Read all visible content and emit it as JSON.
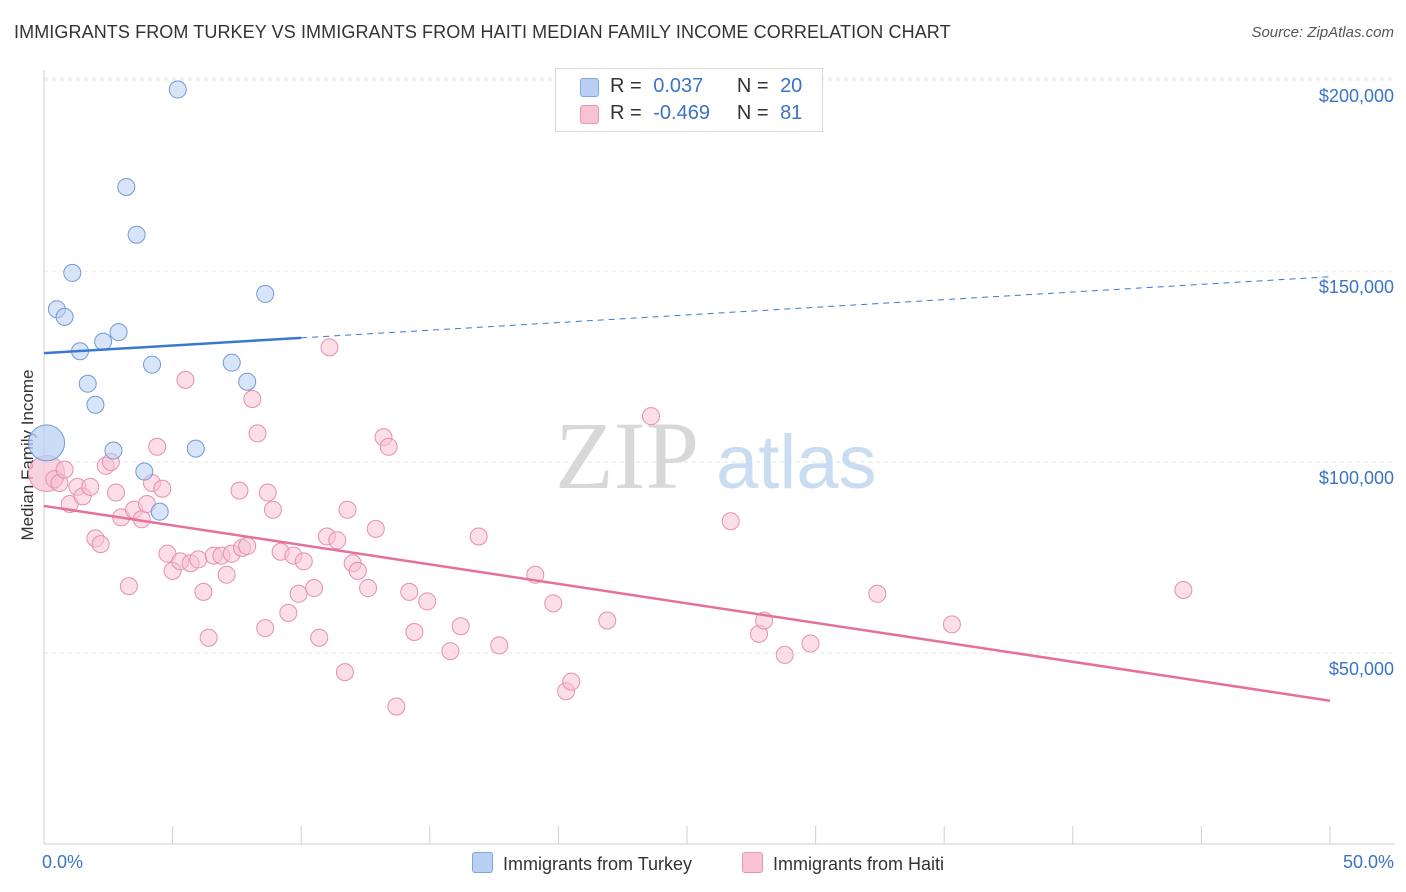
{
  "title": "IMMIGRANTS FROM TURKEY VS IMMIGRANTS FROM HAITI MEDIAN FAMILY INCOME CORRELATION CHART",
  "source": "Source: ZipAtlas.com",
  "watermark": {
    "zip": "ZIP",
    "atlas": "atlas"
  },
  "colors": {
    "turkey": "#3b78d0",
    "turkey_fill": "#b8d0f3",
    "haiti": "#e5709a",
    "haiti_fill": "#f7c3d4",
    "tick_text": "#3b73c5"
  },
  "legend_top": {
    "rows": [
      {
        "r_label": "R =",
        "r_value": "0.037",
        "n_label": "N =",
        "n_value": "20"
      },
      {
        "r_label": "R =",
        "r_value": "-0.469",
        "n_label": "N =",
        "n_value": "81"
      }
    ]
  },
  "legend_bottom": {
    "turkey": "Immigrants from Turkey",
    "haiti": "Immigrants from Haiti"
  },
  "chart_data": {
    "type": "scatter",
    "ylabel": "Median Family Income",
    "xlabel": "",
    "x_tick_labels": {
      "min": "0.0%",
      "max": "50.0%"
    },
    "y_tick_labels": [
      "$200,000",
      "$150,000",
      "$100,000",
      "$50,000"
    ],
    "y_tick_values": [
      200000,
      150000,
      100000,
      50000
    ],
    "xlim": [
      0,
      50
    ],
    "ylim": [
      0,
      205000
    ],
    "series": [
      {
        "name": "Immigrants from Turkey",
        "trend": {
          "x0": 0,
          "y0": 128500,
          "x1": 10,
          "y1": 132500,
          "solid_until": 10,
          "dashed_x1": 50,
          "dashed_y1": 148500
        },
        "points": [
          {
            "x": 0.1,
            "y": 105000,
            "big": true
          },
          {
            "x": 0.5,
            "y": 140000
          },
          {
            "x": 0.8,
            "y": 138000
          },
          {
            "x": 1.1,
            "y": 149500
          },
          {
            "x": 1.4,
            "y": 129000
          },
          {
            "x": 1.7,
            "y": 120500
          },
          {
            "x": 2.0,
            "y": 115000
          },
          {
            "x": 2.3,
            "y": 131500
          },
          {
            "x": 2.7,
            "y": 103000
          },
          {
            "x": 2.9,
            "y": 134000
          },
          {
            "x": 3.2,
            "y": 172000
          },
          {
            "x": 3.6,
            "y": 159500
          },
          {
            "x": 3.9,
            "y": 97500
          },
          {
            "x": 4.2,
            "y": 125500
          },
          {
            "x": 4.5,
            "y": 87000
          },
          {
            "x": 5.2,
            "y": 197500
          },
          {
            "x": 5.9,
            "y": 103500
          },
          {
            "x": 7.3,
            "y": 126000
          },
          {
            "x": 7.9,
            "y": 121000
          },
          {
            "x": 8.6,
            "y": 144000
          }
        ]
      },
      {
        "name": "Immigrants from Haiti",
        "trend": {
          "x0": 0,
          "y0": 88500,
          "x1": 50,
          "y1": 37500
        },
        "points": [
          {
            "x": 0.1,
            "y": 97000,
            "big": true
          },
          {
            "x": 0.4,
            "y": 95500
          },
          {
            "x": 0.6,
            "y": 94500
          },
          {
            "x": 0.8,
            "y": 98000
          },
          {
            "x": 1.0,
            "y": 89000
          },
          {
            "x": 1.3,
            "y": 93500
          },
          {
            "x": 1.5,
            "y": 91000
          },
          {
            "x": 1.8,
            "y": 93500
          },
          {
            "x": 2.0,
            "y": 80000
          },
          {
            "x": 2.2,
            "y": 78500
          },
          {
            "x": 2.4,
            "y": 99000
          },
          {
            "x": 2.6,
            "y": 100000
          },
          {
            "x": 2.8,
            "y": 92000
          },
          {
            "x": 3.0,
            "y": 85500
          },
          {
            "x": 3.3,
            "y": 67500
          },
          {
            "x": 3.5,
            "y": 87500
          },
          {
            "x": 3.8,
            "y": 85000
          },
          {
            "x": 4.0,
            "y": 89000
          },
          {
            "x": 4.2,
            "y": 94500
          },
          {
            "x": 4.4,
            "y": 104000
          },
          {
            "x": 4.6,
            "y": 93000
          },
          {
            "x": 4.8,
            "y": 76000
          },
          {
            "x": 5.0,
            "y": 71500
          },
          {
            "x": 5.3,
            "y": 74000
          },
          {
            "x": 5.5,
            "y": 121500
          },
          {
            "x": 5.7,
            "y": 73500
          },
          {
            "x": 6.0,
            "y": 74500
          },
          {
            "x": 6.2,
            "y": 66000
          },
          {
            "x": 6.4,
            "y": 54000
          },
          {
            "x": 6.6,
            "y": 75500
          },
          {
            "x": 6.9,
            "y": 75500
          },
          {
            "x": 7.1,
            "y": 70500
          },
          {
            "x": 7.3,
            "y": 76000
          },
          {
            "x": 7.6,
            "y": 92500
          },
          {
            "x": 7.7,
            "y": 77500
          },
          {
            "x": 7.9,
            "y": 78000
          },
          {
            "x": 8.1,
            "y": 116500
          },
          {
            "x": 8.3,
            "y": 107500
          },
          {
            "x": 8.6,
            "y": 56500
          },
          {
            "x": 8.7,
            "y": 92000
          },
          {
            "x": 8.9,
            "y": 87500
          },
          {
            "x": 9.2,
            "y": 76500
          },
          {
            "x": 9.5,
            "y": 60500
          },
          {
            "x": 9.7,
            "y": 75500
          },
          {
            "x": 9.9,
            "y": 65500
          },
          {
            "x": 10.1,
            "y": 74000
          },
          {
            "x": 10.5,
            "y": 67000
          },
          {
            "x": 10.7,
            "y": 54000
          },
          {
            "x": 11.0,
            "y": 80500
          },
          {
            "x": 11.1,
            "y": 130000
          },
          {
            "x": 11.4,
            "y": 79500
          },
          {
            "x": 11.7,
            "y": 45000
          },
          {
            "x": 11.8,
            "y": 87500
          },
          {
            "x": 12.0,
            "y": 73500
          },
          {
            "x": 12.2,
            "y": 71500
          },
          {
            "x": 12.6,
            "y": 67000
          },
          {
            "x": 12.9,
            "y": 82500
          },
          {
            "x": 13.2,
            "y": 106500
          },
          {
            "x": 13.4,
            "y": 104000
          },
          {
            "x": 13.7,
            "y": 36000
          },
          {
            "x": 14.2,
            "y": 66000
          },
          {
            "x": 14.4,
            "y": 55500
          },
          {
            "x": 14.9,
            "y": 63500
          },
          {
            "x": 15.8,
            "y": 50500
          },
          {
            "x": 16.2,
            "y": 57000
          },
          {
            "x": 16.9,
            "y": 80500
          },
          {
            "x": 17.7,
            "y": 52000
          },
          {
            "x": 19.1,
            "y": 70500
          },
          {
            "x": 19.8,
            "y": 63000
          },
          {
            "x": 20.3,
            "y": 40000
          },
          {
            "x": 20.5,
            "y": 42500
          },
          {
            "x": 21.9,
            "y": 58500
          },
          {
            "x": 23.6,
            "y": 112000
          },
          {
            "x": 26.7,
            "y": 84500
          },
          {
            "x": 27.8,
            "y": 55000
          },
          {
            "x": 28.0,
            "y": 58500
          },
          {
            "x": 28.8,
            "y": 49500
          },
          {
            "x": 29.8,
            "y": 52500
          },
          {
            "x": 32.4,
            "y": 65500
          },
          {
            "x": 35.3,
            "y": 57500
          },
          {
            "x": 44.3,
            "y": 66500
          }
        ]
      }
    ]
  }
}
